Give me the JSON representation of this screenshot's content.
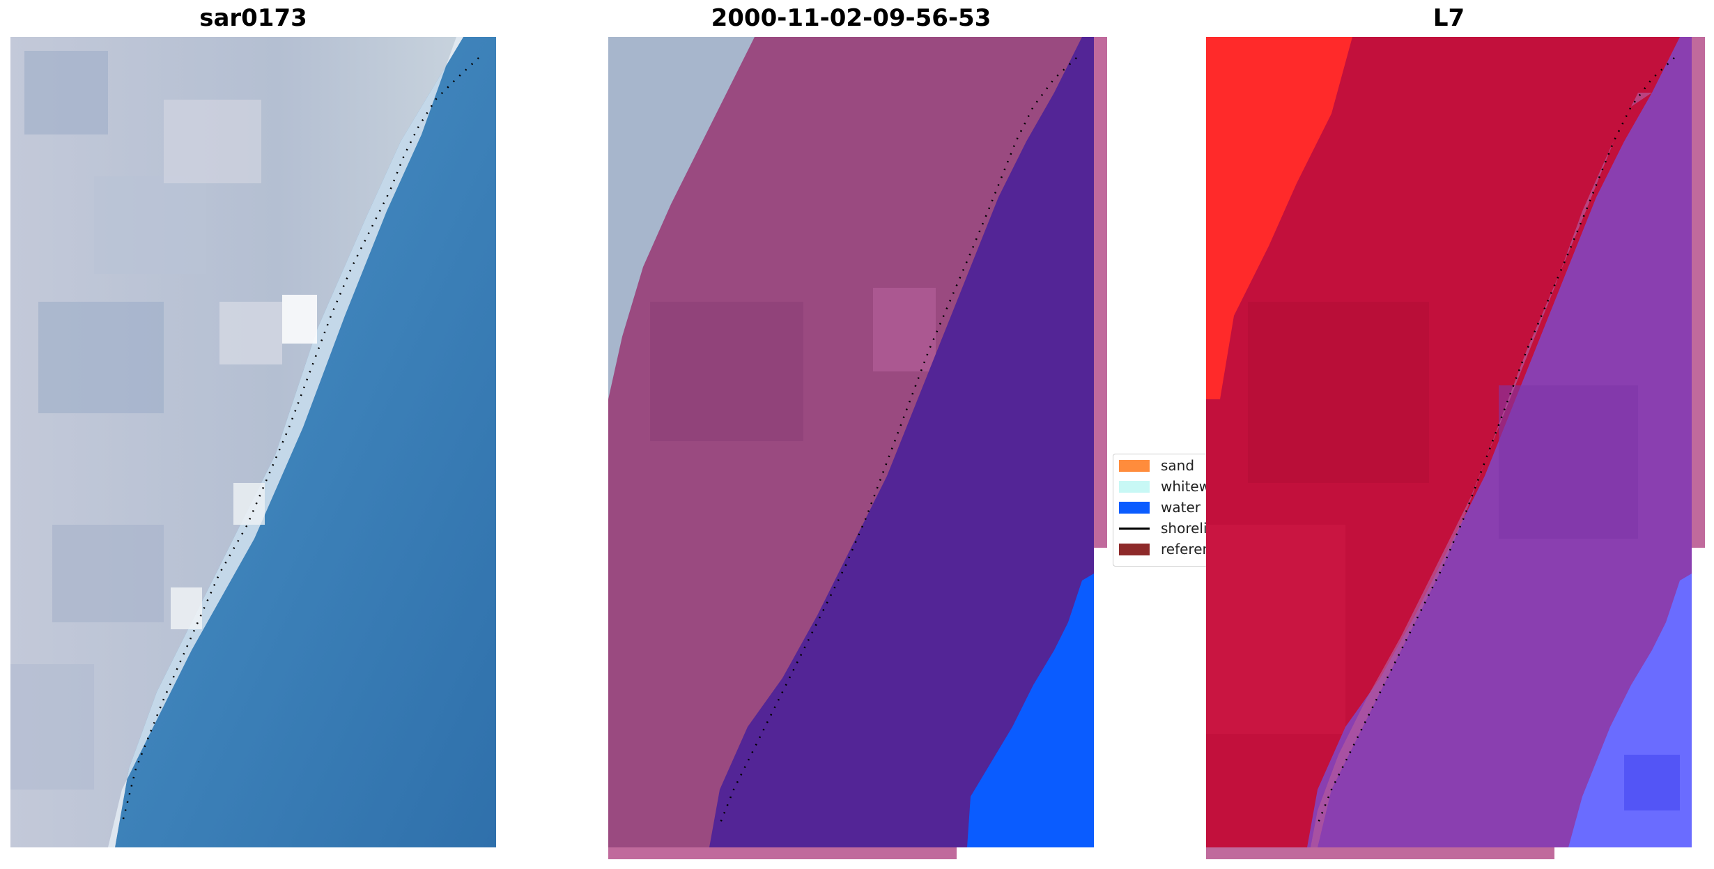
{
  "titles": {
    "left": "sar0173",
    "middle": "2000-11-02-09-56-53",
    "right": "L7"
  },
  "legend": {
    "items": [
      {
        "label": "sand",
        "kind": "patch",
        "color": "#ff8c3c"
      },
      {
        "label": "whitewater",
        "kind": "patch",
        "color": "#c8f8f5"
      },
      {
        "label": "water",
        "kind": "patch",
        "color": "#0a5cff"
      },
      {
        "label": "shoreline",
        "kind": "line",
        "color": "#000000"
      },
      {
        "label": "reference",
        "kind": "patch",
        "color": "#8e2a2a"
      }
    ]
  },
  "colors": {
    "land_rgb": "#a7b6cc",
    "ocean_rgb": "#3b7cb5",
    "sand_overlay": "#9a4a80",
    "water_overlay": "#532596",
    "water_class": "#0a5cff",
    "index_land": "#c2103c",
    "index_land_bright": "#ff2a2a",
    "index_water": "#8a3fb0",
    "index_water_bright": "#6a6cff",
    "strip": "#c06a9c"
  }
}
